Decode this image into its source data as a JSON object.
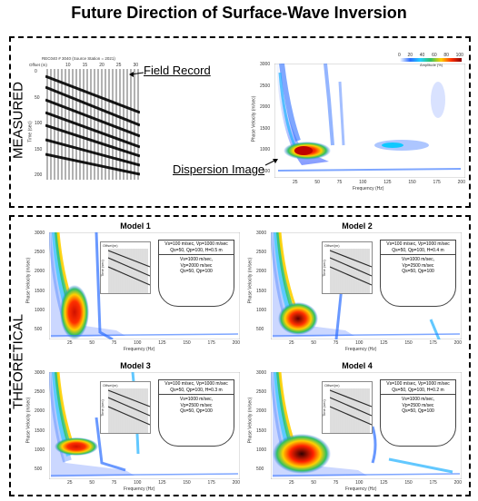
{
  "title": "Future Direction of Surface-Wave Inversion",
  "measured": {
    "label": "MEASURED",
    "field_record_label": "Field Record",
    "dispersion_label": "Dispersion Image",
    "record_header": "REC040 # 3040 (Source Station = 2021)",
    "offset_label": "Offset (m)",
    "time_label": "Time (sec)",
    "offset_ticks": [
      "10",
      "15",
      "20",
      "25",
      "30"
    ],
    "time_ticks": [
      "0",
      "50",
      "100",
      "150",
      "200"
    ],
    "colorbar_ticks": [
      "0",
      "20",
      "40",
      "60",
      "80",
      "100"
    ],
    "colorbar_caption": "Amplitude (%)",
    "x_ticks": [
      "25",
      "50",
      "75",
      "100",
      "125",
      "150",
      "175",
      "200"
    ],
    "y_ticks": [
      "3000",
      "2500",
      "2000",
      "1500",
      "1000",
      "500"
    ],
    "x_label": "Frequency (Hz)",
    "y_label": "Phase Velocity (m/sec)"
  },
  "theoretical": {
    "label": "THEORETICAL",
    "x_ticks": [
      "25",
      "50",
      "75",
      "100",
      "125",
      "150",
      "175",
      "200"
    ],
    "y_ticks": [
      "3000",
      "2500",
      "2000",
      "1500",
      "1000",
      "500"
    ],
    "x_label": "Frequency (Hz)",
    "y_label": "Phase Velocity (m/sec)",
    "inset_offset_label": "Offset(m)",
    "inset_time_label": "Time (sec)",
    "models": [
      {
        "name": "Model 1",
        "layer1": "Vs=100 m/sec, Vp=1000 m/sec",
        "layer1b": "Qs=50, Qp=100, H=0.5 m",
        "half1": "Vs=1000 m/sec,",
        "half2": "Vp=2000 m/sec",
        "half3": "Qs=50, Qp=100"
      },
      {
        "name": "Model 2",
        "layer1": "Vs=100 m/sec, Vp=1000 m/sec",
        "layer1b": "Qs=50, Qp=100, H=0.4 m",
        "half1": "Vs=1000 m/sec,",
        "half2": "Vp=2500 m/sec",
        "half3": "Qs=50, Qp=100"
      },
      {
        "name": "Model 3",
        "layer1": "Vs=100 m/sec, Vp=1000 m/sec",
        "layer1b": "Qs=50, Qp=100, H=0.3 m",
        "half1": "Vs=1000 m/sec,",
        "half2": "Vp=2500 m/sec",
        "half3": "Qs=50, Qp=100"
      },
      {
        "name": "Model 4",
        "layer1": "Vs=100 m/sec, Vp=1000 m/sec",
        "layer1b": "Qs=50, Qp=100, H=0.2 m",
        "half1": "Vs=1000 m/sec,",
        "half2": "Vp=2500 m/sec",
        "half3": "Qs=50, Qp=100"
      }
    ]
  }
}
